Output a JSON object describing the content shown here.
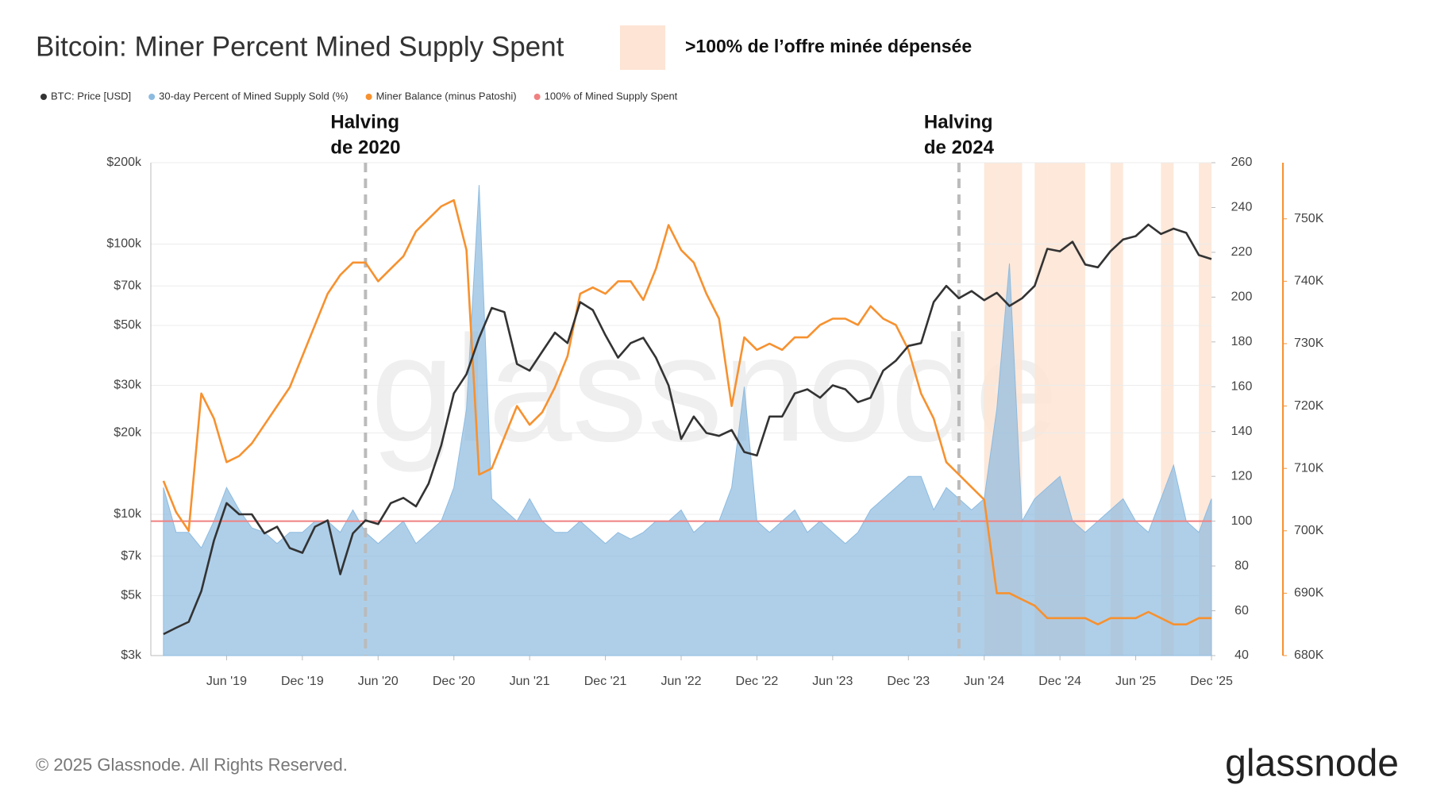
{
  "chart_data": {
    "type": "line",
    "title": "Bitcoin: Miner Percent Mined Supply Spent",
    "highlight_legend": {
      "label": ">100% de l’offre minée dépensée",
      "color": "#fde4d4"
    },
    "x": [
      "2019-01",
      "2019-02",
      "2019-03",
      "2019-04",
      "2019-05",
      "2019-06",
      "2019-07",
      "2019-08",
      "2019-09",
      "2019-10",
      "2019-11",
      "2019-12",
      "2020-01",
      "2020-02",
      "2020-03",
      "2020-04",
      "2020-05",
      "2020-06",
      "2020-07",
      "2020-08",
      "2020-09",
      "2020-10",
      "2020-11",
      "2020-12",
      "2021-01",
      "2021-02",
      "2021-03",
      "2021-04",
      "2021-05",
      "2021-06",
      "2021-07",
      "2021-08",
      "2021-09",
      "2021-10",
      "2021-11",
      "2021-12",
      "2022-01",
      "2022-02",
      "2022-03",
      "2022-04",
      "2022-05",
      "2022-06",
      "2022-07",
      "2022-08",
      "2022-09",
      "2022-10",
      "2022-11",
      "2022-12",
      "2023-01",
      "2023-02",
      "2023-03",
      "2023-04",
      "2023-05",
      "2023-06",
      "2023-07",
      "2023-08",
      "2023-09",
      "2023-10",
      "2023-11",
      "2023-12",
      "2024-01",
      "2024-02",
      "2024-03",
      "2024-04",
      "2024-05",
      "2024-06",
      "2024-07",
      "2024-08",
      "2024-09",
      "2024-10",
      "2024-11",
      "2024-12",
      "2025-01",
      "2025-02",
      "2025-03",
      "2025-04",
      "2025-05",
      "2025-06",
      "2025-07",
      "2025-08",
      "2025-09",
      "2025-10",
      "2025-11",
      "2025-12"
    ],
    "xlim": [
      "2018-12",
      "2025-12"
    ],
    "xticks": [
      {
        "value": "2019-06",
        "label": "Jun '19"
      },
      {
        "value": "2019-12",
        "label": "Dec '19"
      },
      {
        "value": "2020-06",
        "label": "Jun '20"
      },
      {
        "value": "2020-12",
        "label": "Dec '20"
      },
      {
        "value": "2021-06",
        "label": "Jun '21"
      },
      {
        "value": "2021-12",
        "label": "Dec '21"
      },
      {
        "value": "2022-06",
        "label": "Jun '22"
      },
      {
        "value": "2022-12",
        "label": "Dec '22"
      },
      {
        "value": "2023-06",
        "label": "Jun '23"
      },
      {
        "value": "2023-12",
        "label": "Dec '23"
      },
      {
        "value": "2024-06",
        "label": "Jun '24"
      },
      {
        "value": "2024-12",
        "label": "Dec '24"
      },
      {
        "value": "2025-06",
        "label": "Jun '25"
      },
      {
        "value": "2025-12",
        "label": "Dec '25"
      }
    ],
    "ylim": [
      3000,
      200000
    ],
    "ylog": true,
    "yticks": [
      {
        "value": 3000,
        "label": "$3k"
      },
      {
        "value": 5000,
        "label": "$5k"
      },
      {
        "value": 7000,
        "label": "$7k"
      },
      {
        "value": 10000,
        "label": "$10k"
      },
      {
        "value": 20000,
        "label": "$20k"
      },
      {
        "value": 30000,
        "label": "$30k"
      },
      {
        "value": 50000,
        "label": "$50k"
      },
      {
        "value": 70000,
        "label": "$70k"
      },
      {
        "value": 100000,
        "label": "$100k"
      },
      {
        "value": 200000,
        "label": "$200k"
      }
    ],
    "y2lim": [
      40,
      260
    ],
    "y2ticks": [
      40,
      60,
      80,
      100,
      120,
      140,
      160,
      180,
      200,
      220,
      240,
      260
    ],
    "y3lim": [
      680000,
      759000
    ],
    "y3ticks": [
      {
        "value": 680000,
        "label": "680K"
      },
      {
        "value": 690000,
        "label": "690K"
      },
      {
        "value": 700000,
        "label": "700K"
      },
      {
        "value": 710000,
        "label": "710K"
      },
      {
        "value": 720000,
        "label": "720K"
      },
      {
        "value": 730000,
        "label": "730K"
      },
      {
        "value": 740000,
        "label": "740K"
      },
      {
        "value": 750000,
        "label": "750K"
      }
    ],
    "grid": true,
    "series": [
      {
        "name": "BTC: Price [USD]",
        "color": "#333333",
        "axis": "y",
        "values": [
          3600,
          3800,
          4000,
          5200,
          8000,
          11000,
          10000,
          10000,
          8500,
          9000,
          7500,
          7200,
          9000,
          9500,
          6000,
          8500,
          9500,
          9200,
          11000,
          11500,
          10700,
          13000,
          18000,
          28000,
          33000,
          45000,
          58000,
          56000,
          36000,
          34000,
          40000,
          47000,
          43000,
          61000,
          57000,
          46000,
          38000,
          43000,
          45000,
          38000,
          30000,
          19000,
          23000,
          20000,
          19500,
          20500,
          17000,
          16500,
          23000,
          23000,
          28000,
          29000,
          27000,
          30000,
          29000,
          26000,
          27000,
          34000,
          37000,
          42000,
          43000,
          61000,
          70000,
          63000,
          67000,
          62000,
          66000,
          59000,
          63000,
          70000,
          96000,
          94000,
          102000,
          84000,
          82000,
          94000,
          104000,
          107000,
          118000,
          109000,
          114000,
          110000,
          91000,
          88000
        ]
      },
      {
        "name": "30-day Percent of Mined Supply Sold (%)",
        "color": "#8dbbe0",
        "axis": "y2",
        "style": "area",
        "values": [
          115,
          95,
          95,
          88,
          100,
          115,
          105,
          97,
          95,
          90,
          95,
          95,
          100,
          100,
          95,
          105,
          95,
          90,
          95,
          100,
          90,
          95,
          100,
          115,
          150,
          250,
          110,
          105,
          100,
          110,
          100,
          95,
          95,
          100,
          95,
          90,
          95,
          92,
          95,
          100,
          100,
          105,
          95,
          100,
          100,
          115,
          160,
          100,
          95,
          100,
          105,
          95,
          100,
          95,
          90,
          95,
          105,
          110,
          115,
          120,
          120,
          105,
          115,
          110,
          105,
          110,
          150,
          215,
          100,
          110,
          115,
          120,
          100,
          95,
          100,
          105,
          110,
          100,
          95,
          110,
          125,
          100,
          95,
          110
        ]
      },
      {
        "name": "Miner Balance (minus Patoshi)",
        "color": "#f7912f",
        "axis": "y3",
        "values": [
          708000,
          703000,
          700000,
          722000,
          718000,
          711000,
          712000,
          714000,
          717000,
          720000,
          723000,
          728000,
          733000,
          738000,
          741000,
          743000,
          743000,
          740000,
          742000,
          744000,
          748000,
          750000,
          752000,
          753000,
          745000,
          709000,
          710000,
          715000,
          720000,
          717000,
          719000,
          723000,
          728000,
          738000,
          739000,
          738000,
          740000,
          740000,
          737000,
          742000,
          749000,
          745000,
          743000,
          738000,
          734000,
          720000,
          731000,
          729000,
          730000,
          729000,
          731000,
          731000,
          733000,
          734000,
          734000,
          733000,
          736000,
          734000,
          733000,
          729000,
          722000,
          718000,
          711000,
          709000,
          707000,
          705000,
          690000,
          690000,
          689000,
          688000,
          686000,
          686000,
          686000,
          686000,
          685000,
          686000,
          686000,
          686000,
          687000,
          686000,
          685000,
          685000,
          686000,
          686000
        ]
      }
    ],
    "threshold": {
      "name": "100% of Mined Supply Spent",
      "color": "#f08080",
      "value": 100
    },
    "highlight_periods": [
      [
        "2024-06",
        "2024-07"
      ],
      [
        "2024-07",
        "2024-09"
      ],
      [
        "2024-10",
        "2024-11"
      ],
      [
        "2024-11",
        "2025-02"
      ],
      [
        "2025-04",
        "2025-05"
      ],
      [
        "2025-08",
        "2025-09"
      ],
      [
        "2025-11",
        "2025-12"
      ]
    ],
    "annotations": [
      {
        "x": "2020-05",
        "lines": [
          "Halving",
          "de 2020"
        ]
      },
      {
        "x": "2024-04",
        "lines": [
          "Halving",
          "de 2024"
        ]
      }
    ],
    "watermark": "glassnode",
    "footer": "© 2025 Glassnode. All Rights Reserved.",
    "logo": "glassnode"
  }
}
